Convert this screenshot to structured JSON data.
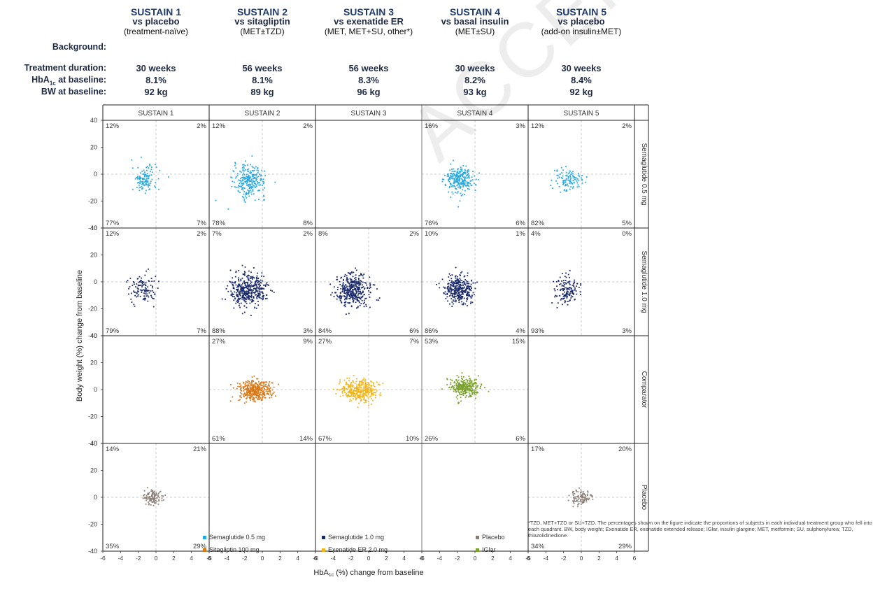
{
  "header": {
    "studies": [
      {
        "title": "SUSTAIN 1",
        "comparator": "vs placebo",
        "background": "(treatment-naïve)",
        "duration": "30 weeks",
        "hba1c": "8.1%",
        "bw": "92 kg"
      },
      {
        "title": "SUSTAIN 2",
        "comparator": "vs sitagliptin",
        "background": "(MET±TZD)",
        "duration": "56 weeks",
        "hba1c": "8.1%",
        "bw": "89 kg"
      },
      {
        "title": "SUSTAIN 3",
        "comparator": "vs exenatide ER",
        "background": "(MET, MET+SU, other*)",
        "duration": "56 weeks",
        "hba1c": "8.3%",
        "bw": "96 kg"
      },
      {
        "title": "SUSTAIN 4",
        "comparator": "vs basal insulin",
        "background": "(MET±SU)",
        "duration": "30 weeks",
        "hba1c": "8.2%",
        "bw": "93 kg"
      },
      {
        "title": "SUSTAIN 5",
        "comparator": "vs placebo",
        "background": "(add-on insulin±MET)",
        "duration": "30 weeks",
        "hba1c": "8.4%",
        "bw": "92 kg"
      }
    ],
    "row_labels": {
      "background": "Background:",
      "duration": "Treatment duration:",
      "hba1c_main": "HbA",
      "hba1c_sub": "1c",
      "hba1c_rest": " at baseline:",
      "bw": "BW at baseline:"
    }
  },
  "chart_data": {
    "type": "scatter",
    "columns": [
      "SUSTAIN 1",
      "SUSTAIN 2",
      "SUSTAIN 3",
      "SUSTAIN 4",
      "SUSTAIN 5"
    ],
    "rows": [
      "Semaglutide 0.5 mg",
      "Semaglutide 1.0 mg",
      "Comparator",
      "Placebo"
    ],
    "xlabel_main": "HbA",
    "xlabel_sub": "1c",
    "xlabel_rest": " (%) change from baseline",
    "ylabel": "Body weight (%) change from baseline",
    "xlim": [
      -6,
      6
    ],
    "ylim": [
      -40,
      40
    ],
    "xticks": [
      -6,
      -4,
      -2,
      0,
      2,
      4,
      6
    ],
    "yticks": [
      40,
      20,
      0,
      -20,
      -40
    ],
    "colors": {
      "sema05": "#29a9e0",
      "sema10": "#1b2a6b",
      "sitagliptin": "#d97a1a",
      "exenatide": "#f2b51c",
      "iglar": "#7aa22b",
      "placebo": "#8a7f78"
    },
    "cells": [
      [
        {
          "key": "sema05",
          "q": [
            "12%",
            "2%",
            "77%",
            "7%"
          ],
          "cx": -1.3,
          "cy": -4,
          "sx": 0.7,
          "sy": 5,
          "n": 120
        },
        {
          "key": "sema05",
          "q": [
            "12%",
            "2%",
            "78%",
            "8%"
          ],
          "cx": -1.4,
          "cy": -5,
          "sx": 0.9,
          "sy": 6,
          "n": 260
        },
        null,
        {
          "key": "sema05",
          "q": [
            "16%",
            "3%",
            "76%",
            "6%"
          ],
          "cx": -1.7,
          "cy": -4,
          "sx": 0.8,
          "sy": 5,
          "n": 260
        },
        {
          "key": "sema05",
          "q": [
            "12%",
            "2%",
            "82%",
            "5%"
          ],
          "cx": -1.5,
          "cy": -4,
          "sx": 0.8,
          "sy": 4,
          "n": 110
        }
      ],
      [
        {
          "key": "sema10",
          "q": [
            "12%",
            "2%",
            "79%",
            "7%"
          ],
          "cx": -1.5,
          "cy": -5,
          "sx": 0.8,
          "sy": 5,
          "n": 120
        },
        {
          "key": "sema10",
          "q": [
            "7%",
            "2%",
            "88%",
            "3%"
          ],
          "cx": -1.6,
          "cy": -6,
          "sx": 1.0,
          "sy": 6,
          "n": 420
        },
        {
          "key": "sema10",
          "q": [
            "8%",
            "2%",
            "84%",
            "6%"
          ],
          "cx": -1.7,
          "cy": -6,
          "sx": 1.0,
          "sy": 6,
          "n": 380
        },
        {
          "key": "sema10",
          "q": [
            "10%",
            "1%",
            "86%",
            "4%"
          ],
          "cx": -1.8,
          "cy": -6,
          "sx": 0.8,
          "sy": 5,
          "n": 330
        },
        {
          "key": "sema10",
          "q": [
            "4%",
            "0%",
            "93%",
            "3%"
          ],
          "cx": -1.7,
          "cy": -6,
          "sx": 0.7,
          "sy": 5,
          "n": 140
        }
      ],
      [
        null,
        {
          "key": "sitagliptin",
          "q": [
            "27%",
            "9%",
            "61%",
            "14%"
          ],
          "cx": -0.9,
          "cy": -1,
          "sx": 0.9,
          "sy": 4,
          "n": 380
        },
        {
          "key": "exenatide",
          "q": [
            "27%",
            "7%",
            "67%",
            "10%"
          ],
          "cx": -1.1,
          "cy": -1,
          "sx": 1.0,
          "sy": 4,
          "n": 360
        },
        {
          "key": "iglar",
          "q": [
            "53%",
            "15%",
            "26%",
            "6%"
          ],
          "cx": -1.2,
          "cy": 2,
          "sx": 0.8,
          "sy": 3.5,
          "n": 300
        },
        null
      ],
      [
        {
          "key": "placebo",
          "q": [
            "14%",
            "21%",
            "35%",
            "29%"
          ],
          "cx": -0.3,
          "cy": 0,
          "sx": 0.6,
          "sy": 3,
          "n": 110
        },
        null,
        null,
        null,
        {
          "key": "placebo",
          "q": [
            "17%",
            "20%",
            "34%",
            "29%"
          ],
          "cx": -0.1,
          "cy": 0,
          "sx": 0.6,
          "sy": 3,
          "n": 110
        }
      ]
    ]
  },
  "legend": [
    {
      "key": "sema05",
      "label": "Semaglutide 0.5 mg"
    },
    {
      "key": "sema10",
      "label": "Semaglutide 1.0 mg"
    },
    {
      "key": "placebo",
      "label": "Placebo"
    },
    {
      "key": "sitagliptin",
      "label": "Sitagliptin 100 mg"
    },
    {
      "key": "exenatide",
      "label": "Exenatide ER 2.0 mg"
    },
    {
      "key": "iglar",
      "label": "IGlar"
    }
  ],
  "footnote": "*TZD, MET+TZD or SU+TZD. The percentages shown on the figure indicate the proportions of subjects in each individual treatment group who fell into each quadrant. BW, body weight; Exenatide ER, exenatide extended release; IGlar, insulin glargine; MET, metformin; SU, sulphonylurea; TZD, thiazolidinedione.",
  "watermark": "ACCEPTED MANUSCRIPT"
}
